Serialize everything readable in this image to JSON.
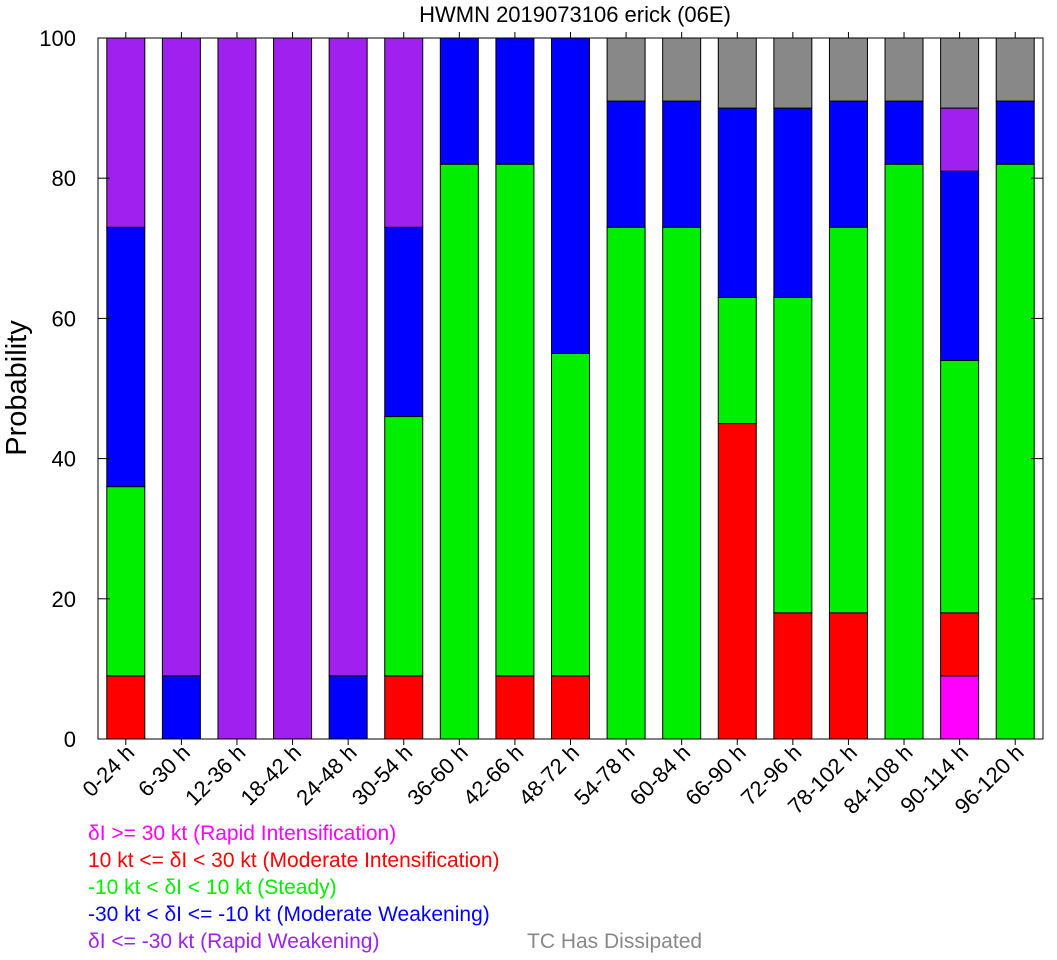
{
  "chart_data": {
    "type": "bar",
    "stacked": true,
    "title": "HWMN 2019073106 erick (06E)",
    "ylabel": "Probability",
    "xlabel": "",
    "ylim": [
      0,
      100
    ],
    "yticks": [
      0,
      20,
      40,
      60,
      80,
      100
    ],
    "grid": false,
    "categories": [
      "0-24 h",
      "6-30 h",
      "12-36 h",
      "18-42 h",
      "24-48 h",
      "30-54 h",
      "36-60 h",
      "42-66 h",
      "48-72 h",
      "54-78 h",
      "60-84 h",
      "66-90 h",
      "72-96 h",
      "78-102 h",
      "84-108 h",
      "90-114 h",
      "96-120 h"
    ],
    "series": [
      {
        "name": "δI >= 30 kt (Rapid Intensification)",
        "color": "#ff00ff",
        "values": [
          0,
          0,
          0,
          0,
          0,
          0,
          0,
          0,
          0,
          0,
          0,
          0,
          0,
          0,
          0,
          9,
          0
        ]
      },
      {
        "name": "10 kt <= δI < 30 kt (Moderate Intensification)",
        "color": "#ff0000",
        "values": [
          9,
          0,
          0,
          0,
          0,
          9,
          0,
          9,
          9,
          0,
          0,
          45,
          18,
          18,
          0,
          9,
          0
        ]
      },
      {
        "name": "-10 kt < δI < 10 kt (Steady)",
        "color": "#00ee00",
        "values": [
          27,
          0,
          0,
          0,
          0,
          37,
          82,
          73,
          46,
          73,
          73,
          18,
          45,
          55,
          82,
          36,
          82
        ]
      },
      {
        "name": "-30 kt < δI <= -10 kt (Moderate Weakening)",
        "color": "#0000ff",
        "values": [
          37,
          9,
          0,
          0,
          9,
          27,
          18,
          18,
          45,
          18,
          18,
          27,
          27,
          18,
          9,
          27,
          9
        ]
      },
      {
        "name": "δI <= -30 kt (Rapid Weakening)",
        "color": "#a020f0",
        "values": [
          27,
          91,
          100,
          100,
          91,
          27,
          0,
          0,
          0,
          0,
          0,
          0,
          0,
          0,
          0,
          9,
          0
        ]
      },
      {
        "name": "TC Has Dissipated",
        "color": "#888888",
        "values": [
          0,
          0,
          0,
          0,
          0,
          0,
          0,
          0,
          0,
          9,
          9,
          10,
          10,
          9,
          9,
          10,
          9
        ]
      }
    ]
  },
  "legend": [
    {
      "text": "δI >= 30 kt (Rapid Intensification)",
      "color": "#ff00ff"
    },
    {
      "text": "10 kt <= δI < 30 kt (Moderate Intensification)",
      "color": "#ff0000"
    },
    {
      "text": "-10 kt < δI < 10 kt (Steady)",
      "color": "#00ee00"
    },
    {
      "text": "-30 kt < δI <= -10 kt (Moderate Weakening)",
      "color": "#0000ff"
    },
    {
      "text": "δI <= -30 kt (Rapid Weakening)",
      "color": "#a020f0"
    }
  ],
  "legend_extra": {
    "text": "TC Has Dissipated",
    "color": "#888888"
  }
}
